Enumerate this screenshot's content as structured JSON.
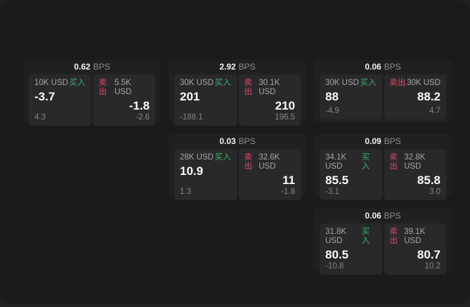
{
  "app": {
    "labels": {
      "buy": "买入",
      "sell": "卖出",
      "bps_unit": "BPS"
    },
    "colors": {
      "backdrop": "#212123",
      "surface": "#1b1b1d",
      "card_bg": "#202022",
      "panel_bg": "#29292b",
      "buy_green": "#38b26a",
      "sell_red": "#dd4b63",
      "label_gray": "#a6a6a6",
      "unit_gray": "#8c8c8c",
      "small_gray": "#858585"
    }
  },
  "cards": [
    {
      "bps": "0.62",
      "buy": {
        "amount": "10K USD",
        "price": "-3.7",
        "delta": "4.3"
      },
      "sell": {
        "amount": "5.5K USD",
        "price": "-1.8",
        "delta": "-2.6"
      }
    },
    {
      "bps": "2.92",
      "buy": {
        "amount": "30K USD",
        "price": "201",
        "delta": "-188.1"
      },
      "sell": {
        "amount": "30.1K USD",
        "price": "210",
        "delta": "196.5"
      }
    },
    {
      "bps": "0.06",
      "buy": {
        "amount": "30K USD",
        "price": "88",
        "delta": "-4.9"
      },
      "sell": {
        "amount": "30K USD",
        "price": "88.2",
        "delta": "4.7"
      }
    },
    {
      "bps": "0.03",
      "buy": {
        "amount": "28K USD",
        "price": "10.9",
        "delta": "1.3"
      },
      "sell": {
        "amount": "32.6K USD",
        "price": "11",
        "delta": "-1.8"
      }
    },
    {
      "bps": "0.09",
      "buy": {
        "amount": "34.1K USD",
        "price": "85.5",
        "delta": "-3.1"
      },
      "sell": {
        "amount": "32.8K USD",
        "price": "85.8",
        "delta": "3.0"
      }
    },
    {
      "bps": "0.06",
      "buy": {
        "amount": "31.8K USD",
        "price": "80.5",
        "delta": "-10.8"
      },
      "sell": {
        "amount": "39.1K USD",
        "price": "80.7",
        "delta": "10.2"
      }
    }
  ]
}
